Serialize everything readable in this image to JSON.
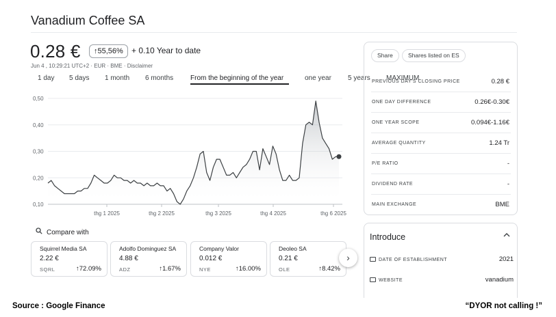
{
  "company": "Vanadium Coffee SA",
  "quote": {
    "price": "0.28 €",
    "change_pct": "↑55,56%",
    "change_text": "+ 0.10 Year to date",
    "meta": "Jun 4 , 10:29:21 UTC+2 · EUR · BME · Disclaimer"
  },
  "tabs": [
    "1 day",
    "5 days",
    "1 month",
    "6 months",
    "From the beginning of the year",
    "one year",
    "5 years",
    "MAXIMUM"
  ],
  "active_tab": "From the beginning of the year",
  "chart_data": {
    "type": "area",
    "yticks": [
      "0,50",
      "0,40",
      "0,30",
      "0,20",
      "0,10"
    ],
    "ylim": [
      0.1,
      0.5
    ],
    "xticks": [
      "thg 1 2025",
      "thg 2 2025",
      "thg 3 2025",
      "thg 4 2025",
      "thg 6 2025"
    ],
    "grid": true,
    "line_color": "#3c4043",
    "series": [
      {
        "values": [
          0.18,
          0.19,
          0.17,
          0.16,
          0.15,
          0.14,
          0.14,
          0.14,
          0.14,
          0.15,
          0.15,
          0.16,
          0.16,
          0.18,
          0.21,
          0.2,
          0.19,
          0.18,
          0.18,
          0.19,
          0.21,
          0.2,
          0.2,
          0.19,
          0.19,
          0.18,
          0.19,
          0.18,
          0.18,
          0.17,
          0.18,
          0.17,
          0.17,
          0.18,
          0.17,
          0.17,
          0.15,
          0.16,
          0.14,
          0.11,
          0.1,
          0.12,
          0.15,
          0.17,
          0.2,
          0.24,
          0.29,
          0.3,
          0.22,
          0.19,
          0.24,
          0.27,
          0.27,
          0.24,
          0.21,
          0.21,
          0.22,
          0.2,
          0.22,
          0.24,
          0.25,
          0.27,
          0.3,
          0.3,
          0.23,
          0.31,
          0.28,
          0.25,
          0.32,
          0.29,
          0.23,
          0.19,
          0.19,
          0.21,
          0.19,
          0.19,
          0.2,
          0.33,
          0.4,
          0.41,
          0.4,
          0.49,
          0.41,
          0.35,
          0.33,
          0.31,
          0.27,
          0.28,
          0.28
        ]
      }
    ]
  },
  "compare": {
    "label": "Compare with",
    "cards": [
      {
        "name": "Squirrel Media SA",
        "price": "2.22 €",
        "ticker": "SQRL",
        "change": "↑72.09%"
      },
      {
        "name": "Adolfo Dominguez SA",
        "price": "4.88 €",
        "ticker": "ADZ",
        "change": "↑1.67%"
      },
      {
        "name": "Company Valor",
        "price": "0.012 €",
        "ticker": "NYE",
        "change": "↑16.00%"
      },
      {
        "name": "Deoleo SA",
        "price": "0.21 €",
        "ticker": "OLE",
        "change": "↑8.42%"
      }
    ]
  },
  "stats": {
    "share_label": "Share",
    "listed_label": "Shares listed on ES",
    "rows": [
      {
        "label": "PREVIOUS DAY'S CLOSING PRICE",
        "value": "0.28 €"
      },
      {
        "label": "ONE DAY DIFFERENCE",
        "value": "0.26€-0.30€"
      },
      {
        "label": "ONE YEAR SCOPE",
        "value": "0.094€-1.16€"
      },
      {
        "label": "AVERAGE QUANTITY",
        "value": "1.24 Tr"
      },
      {
        "label": "P/E RATIO",
        "value": "-"
      },
      {
        "label": "DIVIDEND RATE",
        "value": "-"
      },
      {
        "label": "MAIN EXCHANGE",
        "value": "BME"
      }
    ]
  },
  "introduce": {
    "title": "Introduce",
    "rows": [
      {
        "label": "DATE OF ESTABLISHMENT",
        "value": "2021"
      },
      {
        "label": "WEBSITE",
        "value": "vanadium"
      }
    ]
  },
  "footer": {
    "source": "Source : Google Finance",
    "disclaimer": "“DYOR  not calling !”"
  }
}
